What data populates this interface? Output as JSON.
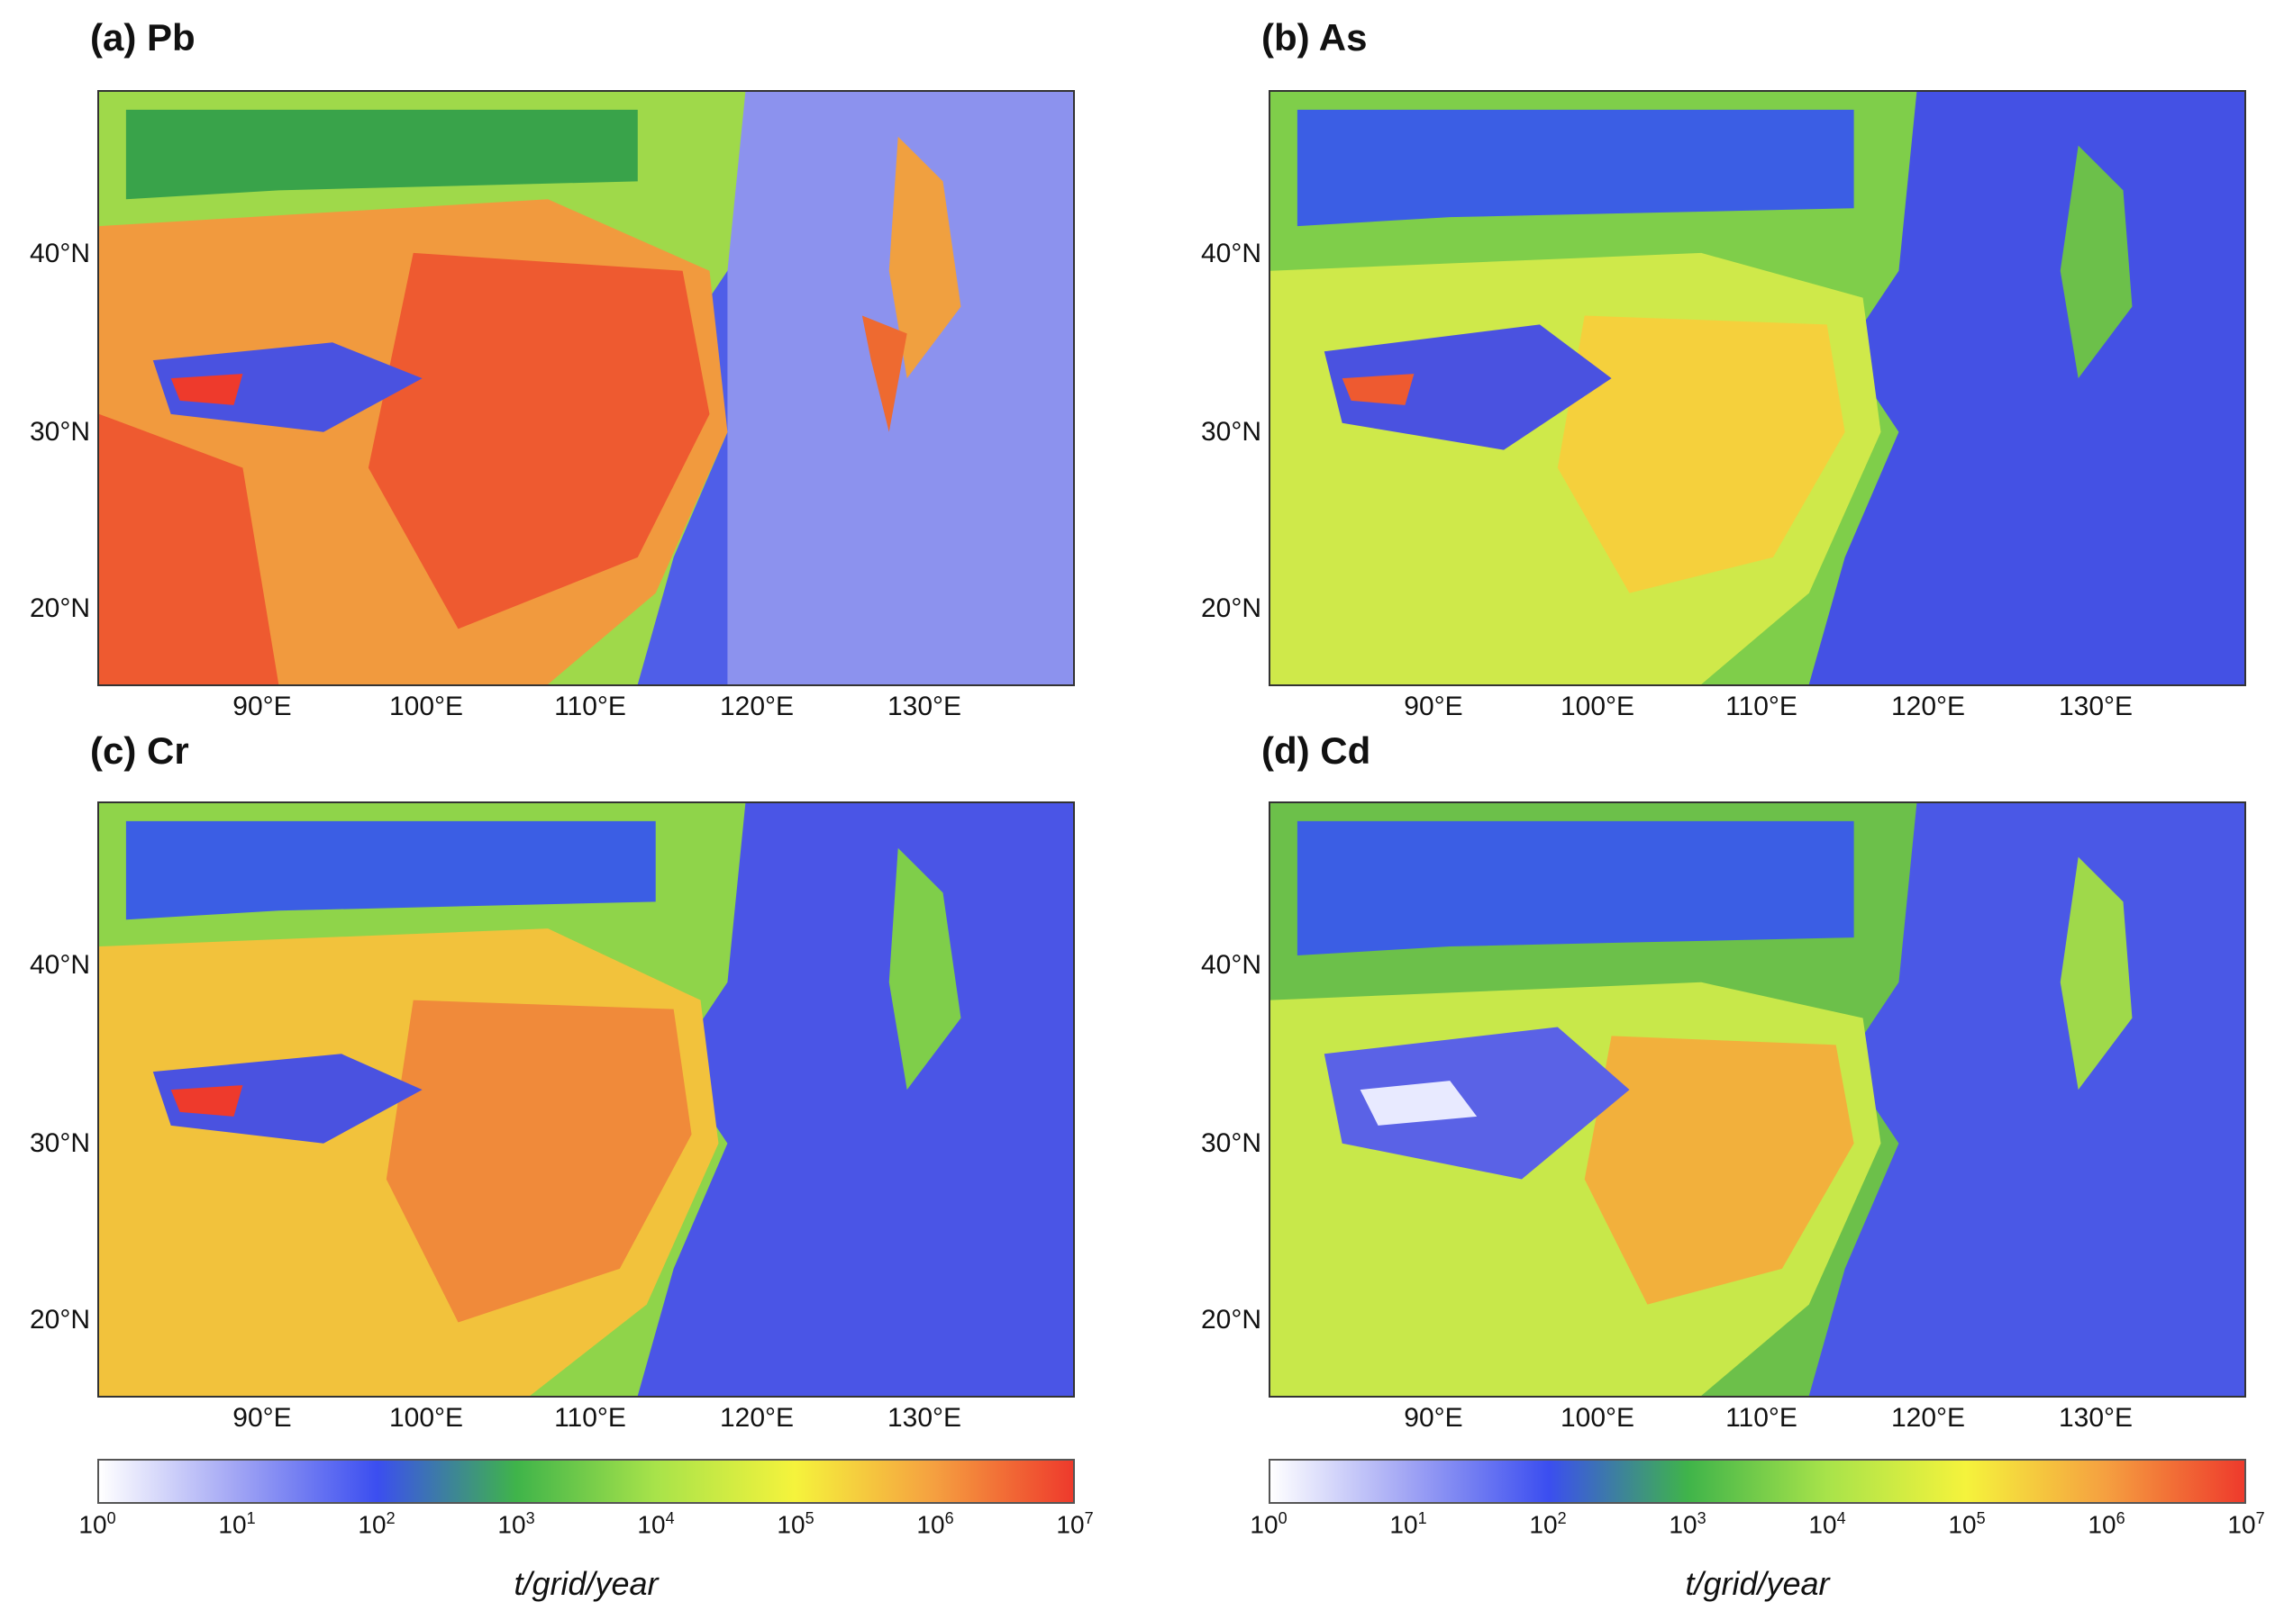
{
  "panels": [
    {
      "title": "(a) Pb",
      "palette": "pb"
    },
    {
      "title": "(b) As",
      "palette": "as"
    },
    {
      "title": "(c) Cr",
      "palette": "cr"
    },
    {
      "title": "(d) Cd",
      "palette": "cd"
    }
  ],
  "axes": {
    "lat_ticks": [
      "40°N",
      "30°N",
      "20°N"
    ],
    "lon_ticks": [
      "90°E",
      "100°E",
      "110°E",
      "120°E",
      "130°E"
    ]
  },
  "colorbar": {
    "label": "t/grid/year",
    "base": "10",
    "exponents": [
      "0",
      "1",
      "2",
      "3",
      "4",
      "5",
      "6",
      "7"
    ],
    "scale": "log",
    "range": [
      1,
      10000000
    ],
    "colors": [
      "#ffffff",
      "#a0a4f4",
      "#3b4ef0",
      "#3fb44a",
      "#a8e34a",
      "#f5f33c",
      "#f5a040",
      "#ee3a2c"
    ]
  }
}
